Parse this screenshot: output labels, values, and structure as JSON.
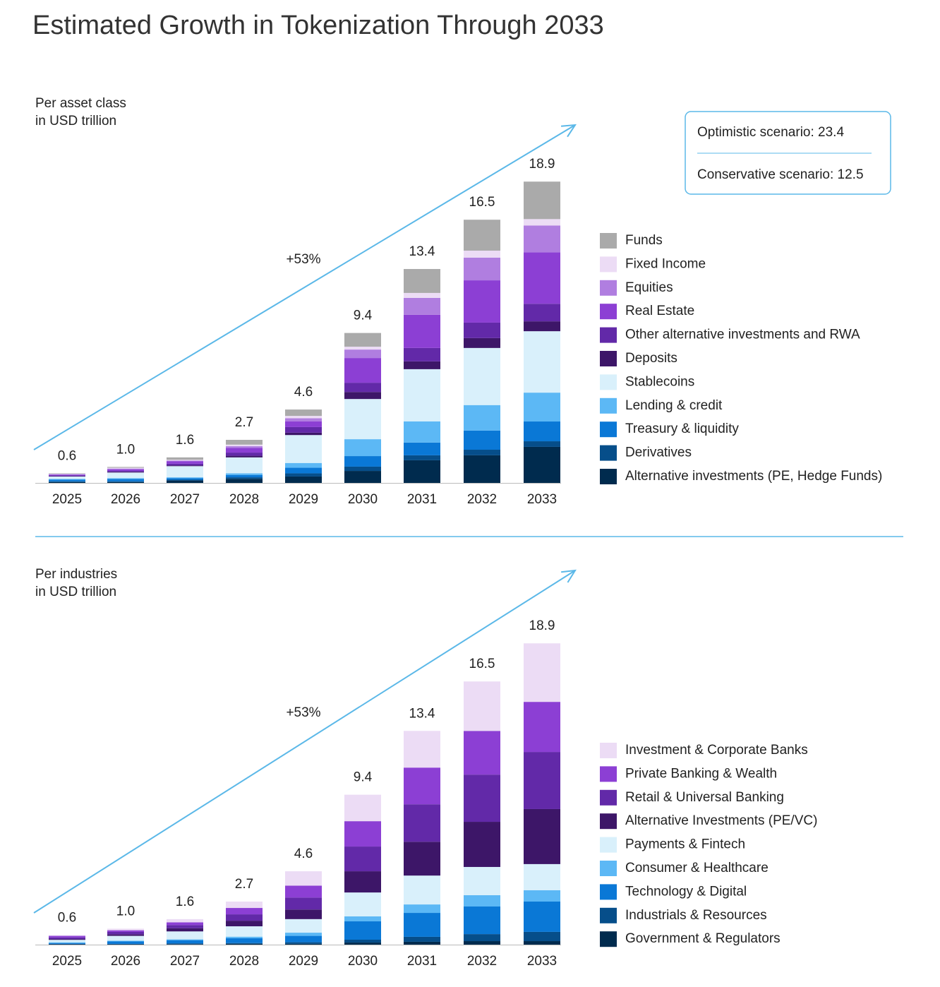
{
  "title": "Estimated Growth in Tokenization Through 2033",
  "scenarios": [
    "Optimistic scenario: 23.4",
    "Conservative scenario: 12.5"
  ],
  "chart_data": [
    {
      "type": "bar",
      "stacked": true,
      "subtitle": [
        "Per asset class",
        "in USD trillion"
      ],
      "annotation": "+53%",
      "categories": [
        "2025",
        "2026",
        "2027",
        "2028",
        "2029",
        "2030",
        "2031",
        "2032",
        "2033"
      ],
      "totals": [
        0.6,
        1.0,
        1.6,
        2.7,
        4.6,
        9.4,
        13.4,
        16.5,
        18.9
      ],
      "total_labels": [
        "0.6",
        "1.0",
        "1.6",
        "2.7",
        "4.6",
        "9.4",
        "13.4",
        "16.5",
        "18.9"
      ],
      "series": [
        {
          "name": "Funds",
          "color": "#aaaaaa",
          "values": [
            0.03,
            0.05,
            0.15,
            0.3,
            0.4,
            0.86,
            1.5,
            1.94,
            2.35
          ]
        },
        {
          "name": "Fixed Income",
          "color": "#ecdcf5",
          "values": [
            0.02,
            0.05,
            0.05,
            0.1,
            0.15,
            0.18,
            0.31,
            0.44,
            0.4
          ]
        },
        {
          "name": "Equities",
          "color": "#b07ee0",
          "values": [
            0.03,
            0.05,
            0.05,
            0.1,
            0.2,
            0.53,
            1.06,
            1.42,
            1.68
          ]
        },
        {
          "name": "Real Estate",
          "color": "#8c3fd4",
          "values": [
            0.05,
            0.1,
            0.15,
            0.3,
            0.35,
            1.55,
            2.08,
            2.65,
            3.23
          ]
        },
        {
          "name": "Other alternative investments and RWA",
          "color": "#6229a8",
          "values": [
            0.05,
            0.05,
            0.1,
            0.2,
            0.35,
            0.58,
            0.84,
            0.97,
            1.1
          ]
        },
        {
          "name": "Deposits",
          "color": "#3d1668",
          "values": [
            0.02,
            0.05,
            0.05,
            0.1,
            0.15,
            0.44,
            0.49,
            0.62,
            0.62
          ]
        },
        {
          "name": "Stablecoins",
          "color": "#d9f0fb",
          "values": [
            0.15,
            0.35,
            0.7,
            1.0,
            1.75,
            2.52,
            3.27,
            3.58,
            3.85
          ]
        },
        {
          "name": "Lending & credit",
          "color": "#5cb8f5",
          "values": [
            0.05,
            0.05,
            0.05,
            0.1,
            0.3,
            1.06,
            1.33,
            1.6,
            1.81
          ]
        },
        {
          "name": "Treasury & liquidity",
          "color": "#0a78d6",
          "values": [
            0.1,
            0.15,
            0.1,
            0.15,
            0.35,
            0.66,
            0.8,
            1.2,
            1.24
          ]
        },
        {
          "name": "Derivatives",
          "color": "#064e8a",
          "values": [
            0.05,
            0.05,
            0.05,
            0.1,
            0.2,
            0.27,
            0.31,
            0.35,
            0.35
          ]
        },
        {
          "name": "Alternative investments (PE, Hedge Funds)",
          "color": "#002b4e",
          "values": [
            0.05,
            0.05,
            0.15,
            0.25,
            0.4,
            0.75,
            1.42,
            1.73,
            2.26
          ]
        }
      ]
    },
    {
      "type": "bar",
      "stacked": true,
      "subtitle": [
        "Per industries",
        "in USD trillion"
      ],
      "annotation": "+53%",
      "categories": [
        "2025",
        "2026",
        "2027",
        "2028",
        "2029",
        "2030",
        "2031",
        "2032",
        "2033"
      ],
      "totals": [
        0.6,
        1.0,
        1.6,
        2.7,
        4.6,
        9.4,
        13.4,
        16.5,
        18.9
      ],
      "total_labels": [
        "0.6",
        "1.0",
        "1.6",
        "2.7",
        "4.6",
        "9.4",
        "13.4",
        "16.5",
        "18.9"
      ],
      "series": [
        {
          "name": "Investment & Corporate Banks",
          "color": "#ecdcf5",
          "values": [
            0.05,
            0.1,
            0.2,
            0.4,
            0.9,
            1.66,
            2.3,
            3.1,
            3.67
          ]
        },
        {
          "name": "Private Banking & Wealth",
          "color": "#8c3fd4",
          "values": [
            0.1,
            0.1,
            0.17,
            0.4,
            0.75,
            1.59,
            2.3,
            2.74,
            3.14
          ]
        },
        {
          "name": "Retail & Universal Banking",
          "color": "#6229a8",
          "values": [
            0.1,
            0.15,
            0.2,
            0.4,
            0.75,
            1.55,
            2.35,
            2.96,
            3.58
          ]
        },
        {
          "name": "Alternative Investments (PE/VC)",
          "color": "#3d1668",
          "values": [
            0.05,
            0.1,
            0.2,
            0.35,
            0.6,
            1.33,
            2.12,
            2.83,
            3.45
          ]
        },
        {
          "name": "Payments & Fintech",
          "color": "#d9f0fb",
          "values": [
            0.15,
            0.3,
            0.5,
            0.65,
            0.85,
            1.5,
            1.81,
            1.77,
            1.64
          ]
        },
        {
          "name": "Consumer & Healthcare",
          "color": "#5cb8f5",
          "values": [
            0.05,
            0.05,
            0.05,
            0.1,
            0.2,
            0.31,
            0.53,
            0.71,
            0.71
          ]
        },
        {
          "name": "Technology & Digital",
          "color": "#0a78d6",
          "values": [
            0.05,
            0.15,
            0.2,
            0.3,
            0.4,
            1.15,
            1.5,
            1.73,
            1.9
          ]
        },
        {
          "name": "Industrials & Resources",
          "color": "#064e8a",
          "values": [
            0.03,
            0.03,
            0.05,
            0.05,
            0.1,
            0.18,
            0.31,
            0.44,
            0.58
          ]
        },
        {
          "name": "Government & Regulators",
          "color": "#002b4e",
          "values": [
            0.02,
            0.02,
            0.03,
            0.05,
            0.05,
            0.13,
            0.18,
            0.22,
            0.22
          ]
        }
      ]
    }
  ]
}
